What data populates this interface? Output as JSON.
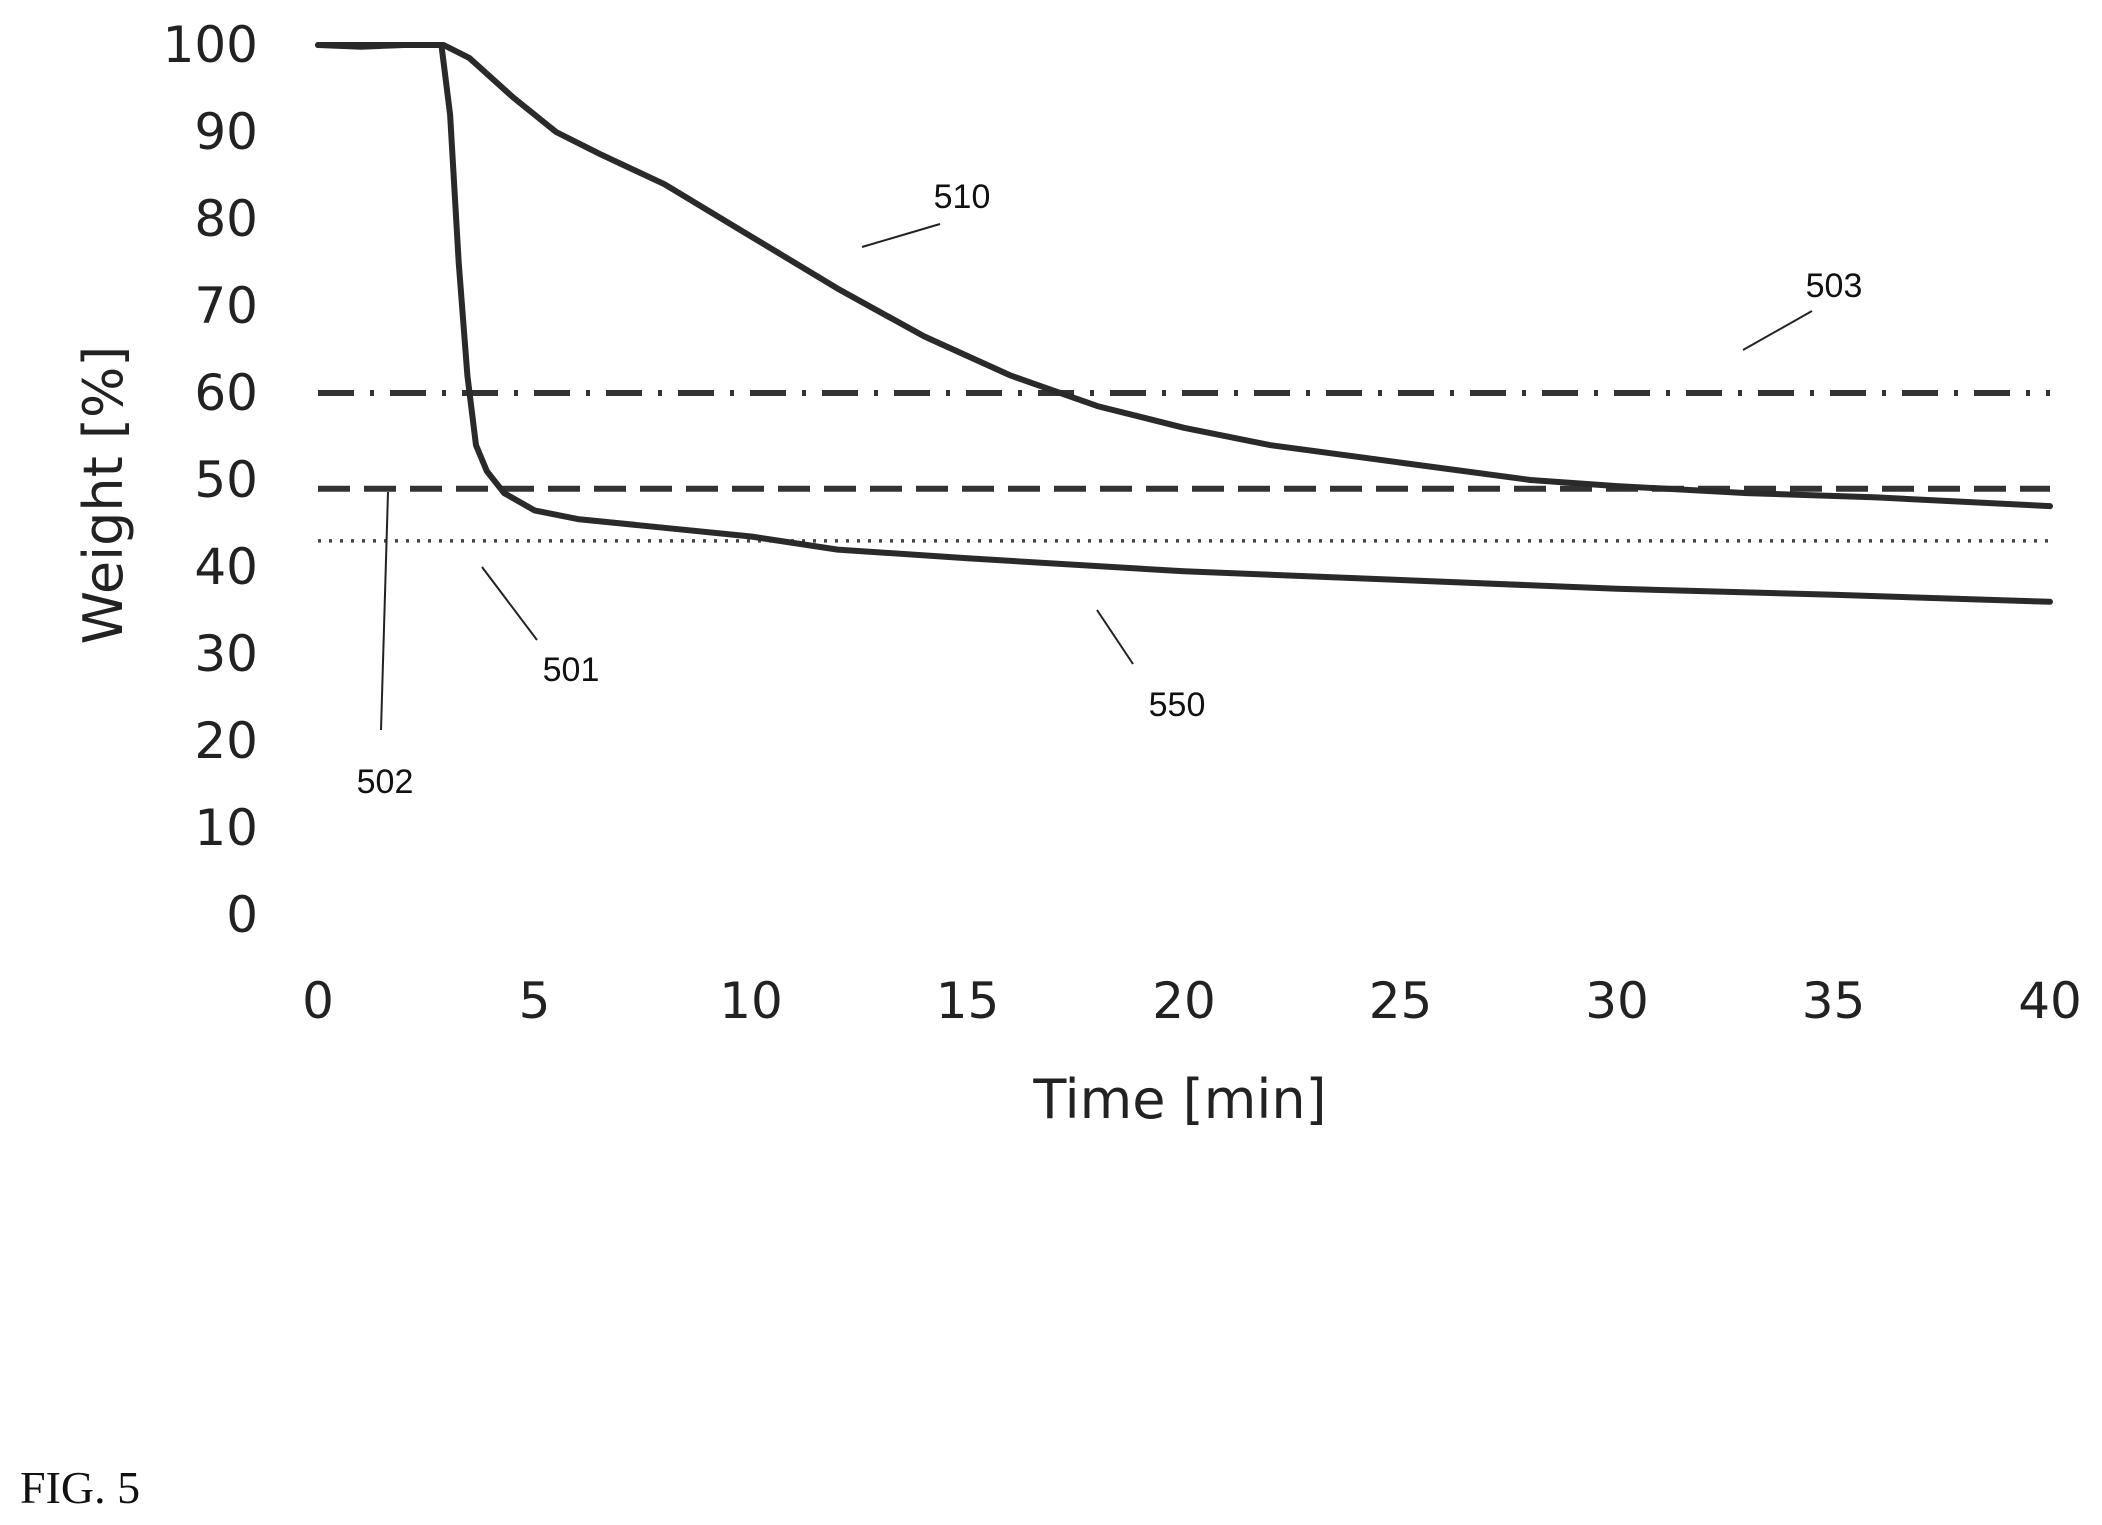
{
  "chart_data": {
    "type": "line",
    "title": "",
    "xlabel": "Time [min]",
    "ylabel": "Weight [%]",
    "xlim": [
      0,
      40
    ],
    "ylim": [
      0,
      100
    ],
    "x_ticks": [
      "0",
      "5",
      "10",
      "15",
      "20",
      "25",
      "30",
      "35",
      "40"
    ],
    "y_ticks": [
      "0",
      "10",
      "20",
      "30",
      "40",
      "50",
      "60",
      "70",
      "80",
      "90",
      "100"
    ],
    "grid": false,
    "legend": "none",
    "series": [
      {
        "label": "510",
        "style": "solid",
        "x": [
          0,
          1,
          2,
          2.9,
          3.5,
          4.5,
          5.5,
          6.5,
          8,
          10,
          12,
          14,
          16,
          18,
          20,
          22,
          25,
          28,
          30,
          33,
          36,
          40
        ],
        "y": [
          100,
          100,
          100,
          100,
          98.5,
          94,
          90,
          87.5,
          84,
          78,
          72,
          66.5,
          62,
          58.5,
          56,
          54,
          52,
          50,
          49.3,
          48.5,
          48,
          47
        ]
      },
      {
        "label": "550",
        "style": "solid",
        "x": [
          0,
          1,
          2,
          2.85,
          3.05,
          3.25,
          3.45,
          3.65,
          3.9,
          4.3,
          5,
          6,
          8,
          10,
          12,
          15,
          20,
          25,
          30,
          35,
          40
        ],
        "y": [
          100,
          99.8,
          100,
          100,
          92,
          75,
          62,
          54,
          51,
          48.5,
          46.5,
          45.5,
          44.5,
          43.5,
          42,
          41,
          39.5,
          38.5,
          37.5,
          36.8,
          36
        ]
      },
      {
        "label": "503",
        "style": "dash-dot",
        "x": [
          0,
          40
        ],
        "y": [
          60,
          60
        ]
      },
      {
        "label": "502",
        "style": "dashed",
        "x": [
          0,
          40
        ],
        "y": [
          49,
          49
        ]
      },
      {
        "label": "501",
        "style": "dotted",
        "x": [
          0,
          40
        ],
        "y": [
          43,
          43
        ]
      }
    ],
    "annotations": [
      {
        "text": "510",
        "target": "510"
      },
      {
        "text": "503",
        "target": "503"
      },
      {
        "text": "501",
        "target": "501"
      },
      {
        "text": "550",
        "target": "550"
      },
      {
        "text": "502",
        "target": "502"
      }
    ]
  },
  "figure_label": "FIG. 5"
}
